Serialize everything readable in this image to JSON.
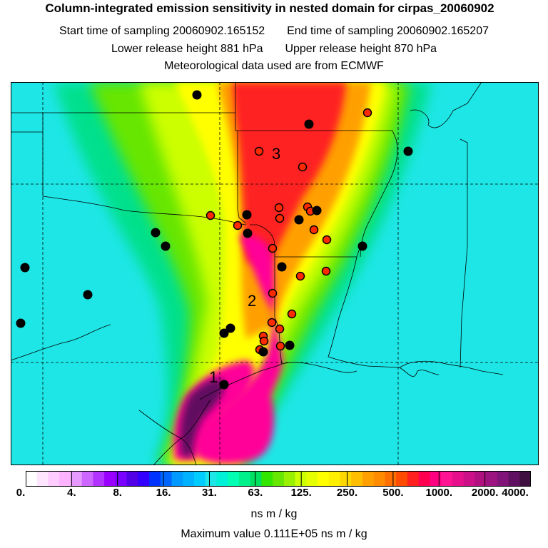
{
  "header": {
    "title": "Column-integrated emission sensitivity in nested domain for cirpas_20060902",
    "start_label": "Start time of sampling",
    "start_value": "20060902.165152",
    "end_label": "End time of sampling",
    "end_value": "20060902.165207",
    "lower_label": "Lower release height",
    "lower_value": "881 hPa",
    "upper_label": "Upper release height",
    "upper_value": "870 hPa",
    "met_line": "Meteorological data used are from ECMWF"
  },
  "map": {
    "labels": [
      {
        "text": "1"
      },
      {
        "text": "2"
      },
      {
        "text": "3"
      }
    ],
    "colors": {
      "background": "#1ee6e6",
      "plume_outer": "#00e08c",
      "plume_green": "#66e600",
      "plume_yellow": "#ffff00",
      "plume_orange": "#ffa000",
      "plume_red": "#ff2020",
      "plume_magenta": "#ff0099",
      "plume_core": "#601060",
      "marker_red": "#ff2a00",
      "marker_black": "#000000"
    }
  },
  "colorbar": {
    "tick_labels": [
      "0.",
      "4.",
      "8.",
      "16.",
      "31.",
      "63.",
      "125.",
      "250.",
      "500.",
      "1000.",
      "2000.",
      "4000."
    ],
    "colors": [
      "#ffffff",
      "#ffe6ff",
      "#ffccff",
      "#ffb3ff",
      "#e699ff",
      "#cc66ff",
      "#b233ff",
      "#9900ff",
      "#7a00ff",
      "#5200e6",
      "#3300ff",
      "#0033ff",
      "#0066ff",
      "#0099ff",
      "#00b2ff",
      "#00ccff",
      "#1ee6e6",
      "#00f0d8",
      "#00ffb3",
      "#00f08c",
      "#00e060",
      "#33e600",
      "#66e600",
      "#99f000",
      "#ccff00",
      "#e6ff00",
      "#ffff00",
      "#fff000",
      "#ffd700",
      "#ffbf00",
      "#ffa000",
      "#ff8c00",
      "#ff6e00",
      "#ff4c00",
      "#ff2020",
      "#ff0050",
      "#ff0080",
      "#ff1493",
      "#e6108c",
      "#cc1088",
      "#b01080",
      "#9c1480",
      "#801478",
      "#601060",
      "#401040"
    ],
    "units": "ns m / kg"
  },
  "footer": {
    "max_value": "Maximum value  0.111E+05 ns m / kg"
  }
}
